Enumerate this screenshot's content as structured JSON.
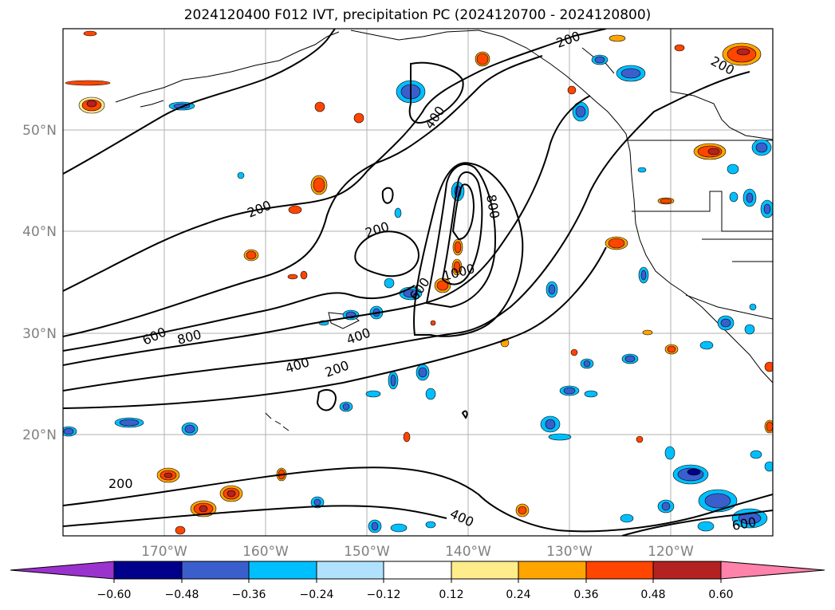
{
  "title": "2024120400 F012 IVT, precipitation PC (2024120700 - 2024120800)",
  "map": {
    "extent": {
      "lon": [
        -180,
        -110
      ],
      "lat": [
        10,
        60
      ]
    },
    "gridlines": true,
    "lat_labels": [
      "50°N",
      "40°N",
      "30°N",
      "20°N"
    ],
    "lon_labels": [
      "170°W",
      "160°W",
      "150°W",
      "140°W",
      "130°W",
      "120°W"
    ],
    "contour_labels": [
      "200",
      "200",
      "200",
      "200",
      "200",
      "200",
      "400",
      "400",
      "400",
      "400",
      "600",
      "600",
      "600",
      "800",
      "800",
      "1000"
    ]
  },
  "colorbar": {
    "ticks": [
      "−0.60",
      "−0.48",
      "−0.36",
      "−0.24",
      "−0.12",
      "0.12",
      "0.24",
      "0.36",
      "0.48",
      "0.60"
    ],
    "colors": [
      "#9a32cd",
      "#00008b",
      "#3a5fcd",
      "#00bfff",
      "#b0e2ff",
      "#ffffff",
      "#ffec8b",
      "#ffa500",
      "#ff4500",
      "#b22222",
      "#ff82ab"
    ]
  }
}
